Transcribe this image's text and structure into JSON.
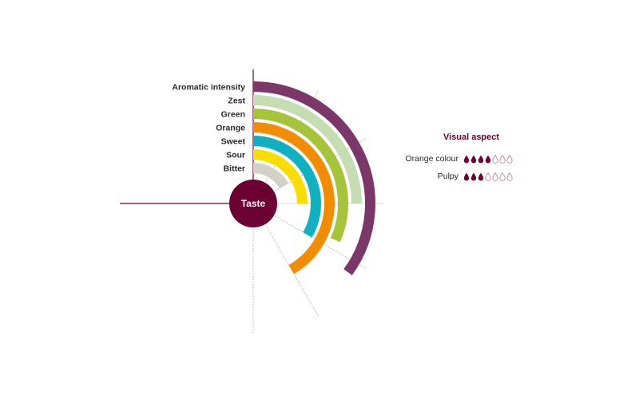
{
  "chart_data": {
    "type": "radial-bar",
    "center_label": "Taste",
    "scale_max": 6,
    "categories": [
      "Aromatic intensity",
      "Zest",
      "Green",
      "Orange",
      "Sweet",
      "Sour",
      "Bitter"
    ],
    "values": [
      4.2,
      3.0,
      3.8,
      5.0,
      4.0,
      3.0,
      2.0
    ],
    "colors": [
      "#7b3767",
      "#c6dcb3",
      "#a6c43a",
      "#f28c00",
      "#0fb0c0",
      "#f8de00",
      "#d3d0c7"
    ]
  },
  "visual_aspect": {
    "title": "Visual aspect",
    "max": 7,
    "drop_color": "#6b0033",
    "items": [
      {
        "label": "Orange colour",
        "value": 4
      },
      {
        "label": "Pulpy",
        "value": 3
      }
    ]
  }
}
